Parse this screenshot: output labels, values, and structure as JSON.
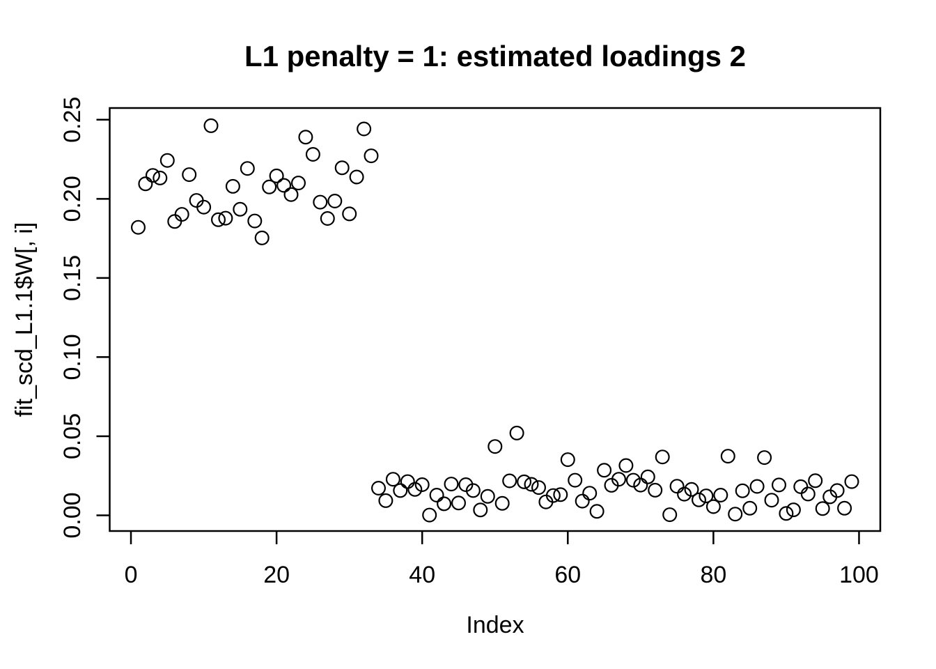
{
  "chart_data": {
    "type": "scatter",
    "title": "L1 penalty = 1: estimated loadings 2",
    "xlabel": "Index",
    "ylabel": "fit_scd_L1.1$W[, i]",
    "marker": "open-circle",
    "grid": false,
    "legend": null,
    "xlim": [
      -2.92,
      102.92
    ],
    "ylim": [
      -0.0099,
      0.2574
    ],
    "x_ticks": [
      0,
      20,
      40,
      60,
      80,
      100
    ],
    "y_ticks": [
      0.0,
      0.05,
      0.1,
      0.15,
      0.2,
      0.25
    ],
    "y_tick_labels": [
      "0.00",
      "0.05",
      "0.10",
      "0.15",
      "0.20",
      "0.25"
    ],
    "points": [
      [
        1,
        0.182
      ],
      [
        2,
        0.2095
      ],
      [
        3,
        0.2148
      ],
      [
        4,
        0.2132
      ],
      [
        5,
        0.2243
      ],
      [
        6,
        0.1857
      ],
      [
        7,
        0.1902
      ],
      [
        8,
        0.2153
      ],
      [
        9,
        0.199
      ],
      [
        10,
        0.1948
      ],
      [
        11,
        0.2462
      ],
      [
        12,
        0.1868
      ],
      [
        13,
        0.1878
      ],
      [
        14,
        0.2079
      ],
      [
        15,
        0.1934
      ],
      [
        16,
        0.2192
      ],
      [
        17,
        0.186
      ],
      [
        18,
        0.1753
      ],
      [
        19,
        0.2075
      ],
      [
        20,
        0.2145
      ],
      [
        21,
        0.2085
      ],
      [
        22,
        0.2027
      ],
      [
        23,
        0.21
      ],
      [
        24,
        0.239
      ],
      [
        25,
        0.2281
      ],
      [
        26,
        0.1979
      ],
      [
        27,
        0.1876
      ],
      [
        28,
        0.1986
      ],
      [
        29,
        0.2196
      ],
      [
        30,
        0.1905
      ],
      [
        31,
        0.2138
      ],
      [
        32,
        0.2442
      ],
      [
        33,
        0.2272
      ],
      [
        34,
        0.0172
      ],
      [
        35,
        0.0093
      ],
      [
        36,
        0.0228
      ],
      [
        37,
        0.0157
      ],
      [
        38,
        0.0213
      ],
      [
        39,
        0.0164
      ],
      [
        40,
        0.0194
      ],
      [
        41,
        0.0002
      ],
      [
        42,
        0.0128
      ],
      [
        43,
        0.0073
      ],
      [
        44,
        0.0198
      ],
      [
        45,
        0.0078
      ],
      [
        46,
        0.0194
      ],
      [
        47,
        0.0157
      ],
      [
        48,
        0.0034
      ],
      [
        49,
        0.012
      ],
      [
        50,
        0.0435
      ],
      [
        51,
        0.0076
      ],
      [
        52,
        0.0218
      ],
      [
        53,
        0.052
      ],
      [
        54,
        0.0212
      ],
      [
        55,
        0.0196
      ],
      [
        56,
        0.0176
      ],
      [
        57,
        0.0085
      ],
      [
        58,
        0.0125
      ],
      [
        59,
        0.0131
      ],
      [
        60,
        0.0352
      ],
      [
        61,
        0.0222
      ],
      [
        62,
        0.009
      ],
      [
        63,
        0.014
      ],
      [
        64,
        0.0025
      ],
      [
        65,
        0.0285
      ],
      [
        66,
        0.019
      ],
      [
        67,
        0.0228
      ],
      [
        68,
        0.0315
      ],
      [
        69,
        0.0222
      ],
      [
        70,
        0.0191
      ],
      [
        71,
        0.0243
      ],
      [
        72,
        0.0159
      ],
      [
        73,
        0.0369
      ],
      [
        74,
        0.0004
      ],
      [
        75,
        0.0184
      ],
      [
        76,
        0.0134
      ],
      [
        77,
        0.0164
      ],
      [
        78,
        0.0098
      ],
      [
        79,
        0.0123
      ],
      [
        80,
        0.0055
      ],
      [
        81,
        0.0128
      ],
      [
        82,
        0.0374
      ],
      [
        83,
        0.0008
      ],
      [
        84,
        0.0155
      ],
      [
        85,
        0.0045
      ],
      [
        86,
        0.0183
      ],
      [
        87,
        0.0365
      ],
      [
        88,
        0.0096
      ],
      [
        89,
        0.0192
      ],
      [
        90,
        0.0012
      ],
      [
        91,
        0.0035
      ],
      [
        92,
        0.0181
      ],
      [
        93,
        0.0135
      ],
      [
        94,
        0.0219
      ],
      [
        95,
        0.0043
      ],
      [
        96,
        0.0117
      ],
      [
        97,
        0.0157
      ],
      [
        98,
        0.0045
      ],
      [
        99,
        0.0213
      ]
    ]
  },
  "colors": {
    "foreground": "#000000",
    "background": "#ffffff"
  }
}
